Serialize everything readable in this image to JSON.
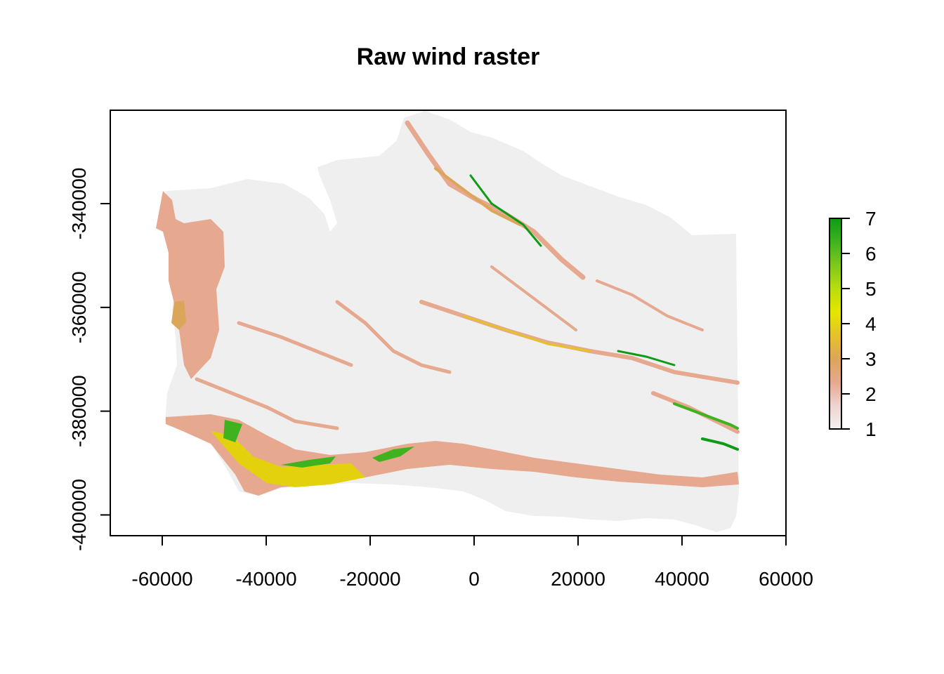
{
  "chart_data": {
    "type": "heatmap",
    "title": "Raw wind raster",
    "xlabel": "",
    "ylabel": "",
    "xlim": [
      -70000,
      60000
    ],
    "ylim": [
      -404000,
      -322000
    ],
    "x_ticks": [
      -60000,
      -40000,
      -20000,
      0,
      20000,
      40000,
      60000
    ],
    "y_ticks": [
      -340000,
      -360000,
      -380000,
      -400000
    ],
    "legend": {
      "min": 1,
      "max": 7,
      "ticks": [
        1,
        2,
        3,
        4,
        5,
        6,
        7
      ],
      "colors": [
        "#f2f2f2",
        "#eed3cf",
        "#e6a88e",
        "#dca65a",
        "#e3c32a",
        "#e6e600",
        "#b9dc0d",
        "#7ec81b",
        "#3eb21f",
        "#0e9b16"
      ]
    },
    "background_value_color": "#efefef",
    "grid": false
  }
}
